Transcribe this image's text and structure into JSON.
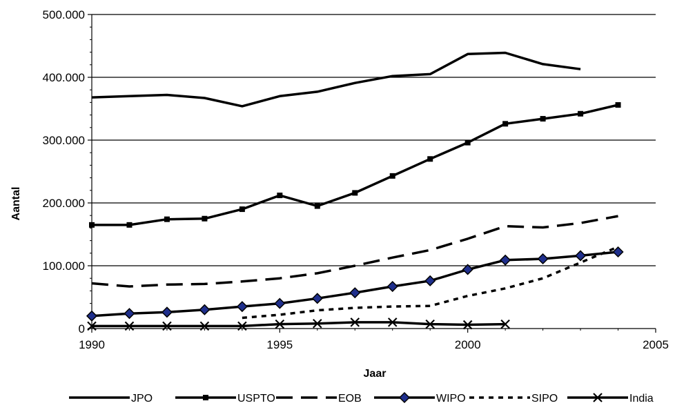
{
  "chart_data": {
    "type": "line",
    "xlabel": "Jaar",
    "ylabel": "Aantal",
    "xlim": [
      1990,
      2005
    ],
    "ylim": [
      0,
      500000
    ],
    "x_ticks": [
      1990,
      1995,
      2000,
      2005
    ],
    "x_tick_labels": [
      "1990",
      "1995",
      "2000",
      "2005"
    ],
    "y_ticks": [
      0,
      100000,
      200000,
      300000,
      400000,
      500000
    ],
    "y_tick_labels": [
      "0",
      "100.000",
      "200.000",
      "300.000",
      "400.000",
      "500.000"
    ],
    "grid": "horizontal",
    "legend_position": "bottom",
    "series": [
      {
        "name": "JPO",
        "style": "solid",
        "marker": "none",
        "color": "#000000",
        "x": [
          1990,
          1991,
          1992,
          1993,
          1994,
          1995,
          1996,
          1997,
          1998,
          1999,
          2000,
          2001,
          2002,
          2003
        ],
        "values": [
          368000,
          370000,
          372000,
          367000,
          354000,
          370000,
          377000,
          391000,
          402000,
          405000,
          437000,
          439000,
          421000,
          413000
        ]
      },
      {
        "name": "USPTO",
        "style": "solid",
        "marker": "square",
        "color": "#000000",
        "x": [
          1990,
          1991,
          1992,
          1993,
          1994,
          1995,
          1996,
          1997,
          1998,
          1999,
          2000,
          2001,
          2002,
          2003,
          2004
        ],
        "values": [
          165000,
          165000,
          174000,
          175000,
          190000,
          212000,
          195000,
          216000,
          243000,
          270000,
          296000,
          326000,
          334000,
          342000,
          356000
        ]
      },
      {
        "name": "EOB",
        "style": "long-dash",
        "marker": "none",
        "color": "#000000",
        "x": [
          1990,
          1991,
          1992,
          1993,
          1994,
          1995,
          1996,
          1997,
          1998,
          1999,
          2000,
          2001,
          2002,
          2003,
          2004
        ],
        "values": [
          72000,
          67000,
          70000,
          71000,
          75000,
          80000,
          88000,
          100000,
          113000,
          125000,
          143000,
          163000,
          161000,
          168000,
          179000
        ]
      },
      {
        "name": "WIPO",
        "style": "solid",
        "marker": "diamond",
        "color": "#000000",
        "marker_fill": "#1f2f8c",
        "x": [
          1990,
          1991,
          1992,
          1993,
          1994,
          1995,
          1996,
          1997,
          1998,
          1999,
          2000,
          2001,
          2002,
          2003,
          2004
        ],
        "values": [
          20000,
          24000,
          26000,
          30000,
          35000,
          40000,
          48000,
          57000,
          67000,
          76000,
          94000,
          109000,
          111000,
          116000,
          122000
        ]
      },
      {
        "name": "SIPO",
        "style": "short-dash",
        "marker": "none",
        "color": "#000000",
        "x": [
          1994,
          1995,
          1996,
          1997,
          1998,
          1999,
          2000,
          2001,
          2002,
          2003,
          2004
        ],
        "values": [
          17000,
          22000,
          29000,
          33000,
          35000,
          36000,
          52000,
          64000,
          80000,
          105000,
          130000
        ]
      },
      {
        "name": "India",
        "style": "solid",
        "marker": "x",
        "color": "#000000",
        "x": [
          1990,
          1991,
          1992,
          1993,
          1994,
          1995,
          1996,
          1997,
          1998,
          1999,
          2000,
          2001
        ],
        "values": [
          4000,
          4000,
          4000,
          4000,
          4000,
          7000,
          8000,
          10000,
          10000,
          7000,
          6000,
          7000
        ]
      }
    ]
  }
}
